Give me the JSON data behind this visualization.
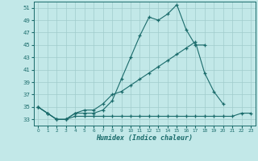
{
  "xlabel": "Humidex (Indice chaleur)",
  "xlim": [
    -0.5,
    23.5
  ],
  "ylim": [
    32.0,
    52.0
  ],
  "yticks": [
    33,
    35,
    37,
    39,
    41,
    43,
    45,
    47,
    49,
    51
  ],
  "xticks": [
    0,
    1,
    2,
    3,
    4,
    5,
    6,
    7,
    8,
    9,
    10,
    11,
    12,
    13,
    14,
    15,
    16,
    17,
    18,
    19,
    20,
    21,
    22,
    23
  ],
  "bg_color": "#c2e8e8",
  "grid_color": "#a0cccc",
  "line_color": "#1a6b6b",
  "line1_y": [
    35.0,
    34.0,
    33.0,
    33.0,
    34.0,
    34.0,
    34.0,
    34.5,
    36.0,
    39.5,
    43.0,
    46.5,
    49.5,
    49.0,
    50.0,
    51.5,
    47.5,
    45.0,
    45.0,
    null,
    null,
    null,
    null,
    null
  ],
  "line2_y": [
    35.0,
    34.0,
    33.0,
    33.0,
    34.0,
    34.5,
    34.5,
    35.5,
    37.0,
    37.5,
    38.5,
    39.5,
    40.5,
    41.5,
    42.5,
    43.5,
    44.5,
    45.5,
    40.5,
    37.5,
    35.5,
    null,
    null,
    null
  ],
  "line3_y": [
    35.0,
    34.0,
    33.0,
    33.0,
    33.5,
    33.5,
    33.5,
    33.5,
    33.5,
    33.5,
    33.5,
    33.5,
    33.5,
    33.5,
    33.5,
    33.5,
    33.5,
    33.5,
    33.5,
    33.5,
    33.5,
    33.5,
    34.0,
    34.0
  ]
}
